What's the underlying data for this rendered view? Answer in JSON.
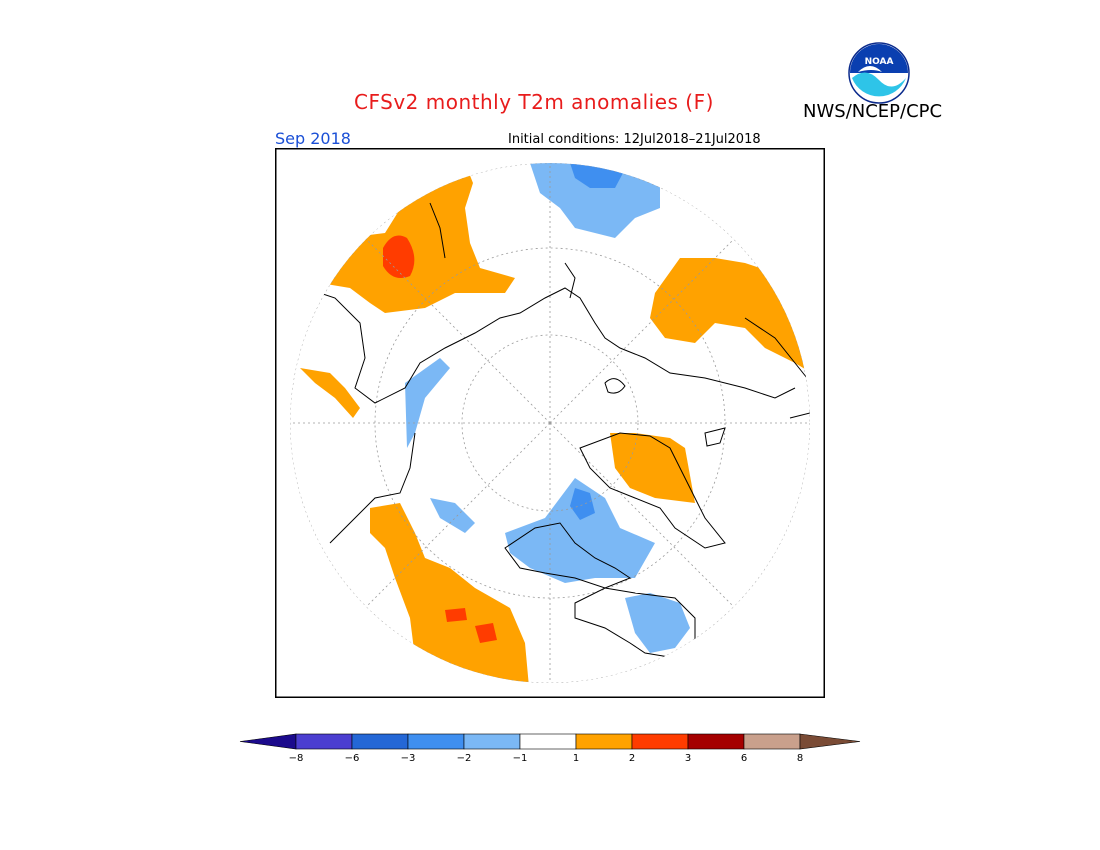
{
  "header": {
    "title": "CFSv2 monthly T2m anomalies (F)",
    "org": "NWS/NCEP/CPC",
    "logo_text": "NOAA",
    "month": "Sep 2018",
    "initial_conditions": "Initial conditions: 12Jul2018–21Jul2018"
  },
  "colorbar": {
    "labels": [
      "−8",
      "−6",
      "−3",
      "−2",
      "−1",
      "1",
      "2",
      "3",
      "6",
      "8"
    ],
    "colors": [
      "#1b0a8c",
      "#4b3ed0",
      "#2467d6",
      "#3f8ff0",
      "#7bb8f5",
      "#ffffff",
      "#ffa200",
      "#ff3c00",
      "#a50000",
      "#c9a08c",
      "#7a4b35"
    ]
  },
  "palette": {
    "warm1": "#ffa200",
    "warm2": "#ff3c00",
    "warm3": "#a50000",
    "cool1": "#7bb8f5",
    "cool2": "#3f8ff0",
    "cool3": "#2467d6",
    "title_red": "#e81c1c",
    "month_blue": "#1a4fd6"
  }
}
